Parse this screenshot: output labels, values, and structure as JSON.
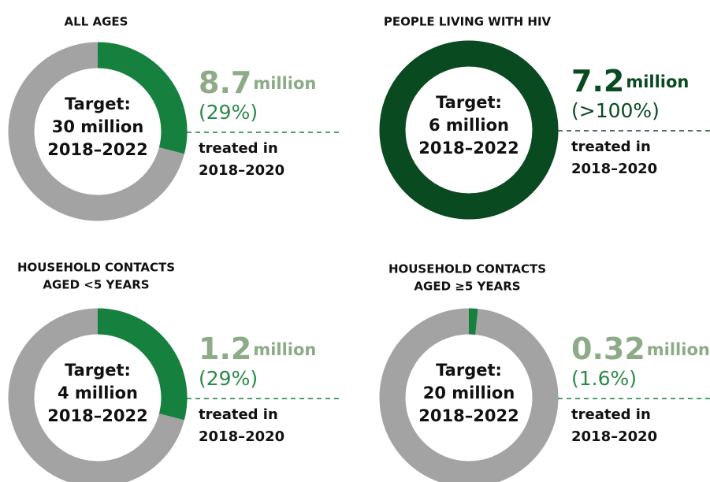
{
  "chart_data": [
    {
      "type": "donut",
      "title": [
        "ALL AGES"
      ],
      "center_lines": [
        "Target:",
        "30 million",
        "2018–2022"
      ],
      "amount": "8.7",
      "unit": "million",
      "values": [
        29
      ],
      "value_labels": [
        "(29%)"
      ],
      "note_lines": [
        "treated in",
        "2018–2020"
      ],
      "color": "#16803f",
      "amount_color": "#8cab86",
      "track_color": "#a3a3a3"
    },
    {
      "type": "donut",
      "title": [
        "PEOPLE LIVING WITH HIV"
      ],
      "center_lines": [
        "Target:",
        "6 million",
        "2018–2022"
      ],
      "amount": "7.2",
      "unit": "million",
      "values": [
        100
      ],
      "value_labels": [
        "(>100%)"
      ],
      "note_lines": [
        "treated in",
        "2018–2020"
      ],
      "color": "#0a4a21",
      "amount_color": "#0a4a21",
      "track_color": "#a3a3a3"
    },
    {
      "type": "donut",
      "title": [
        "HOUSEHOLD CONTACTS",
        "AGED <5 YEARS"
      ],
      "center_lines": [
        "Target:",
        "4 million",
        "2018–2022"
      ],
      "amount": "1.2",
      "unit": "million",
      "values": [
        29
      ],
      "value_labels": [
        "(29%)"
      ],
      "note_lines": [
        "treated in",
        "2018–2020"
      ],
      "color": "#16803f",
      "amount_color": "#8cab86",
      "track_color": "#a3a3a3"
    },
    {
      "type": "donut",
      "title": [
        "HOUSEHOLD CONTACTS",
        "AGED ≥5 YEARS"
      ],
      "center_lines": [
        "Target:",
        "20 million",
        "2018–2022"
      ],
      "amount": "0.32",
      "unit": "million",
      "values": [
        1.6
      ],
      "value_labels": [
        "(1.6%)"
      ],
      "note_lines": [
        "treated in",
        "2018–2020"
      ],
      "color": "#16803f",
      "amount_color": "#8cab86",
      "track_color": "#a3a3a3"
    }
  ]
}
